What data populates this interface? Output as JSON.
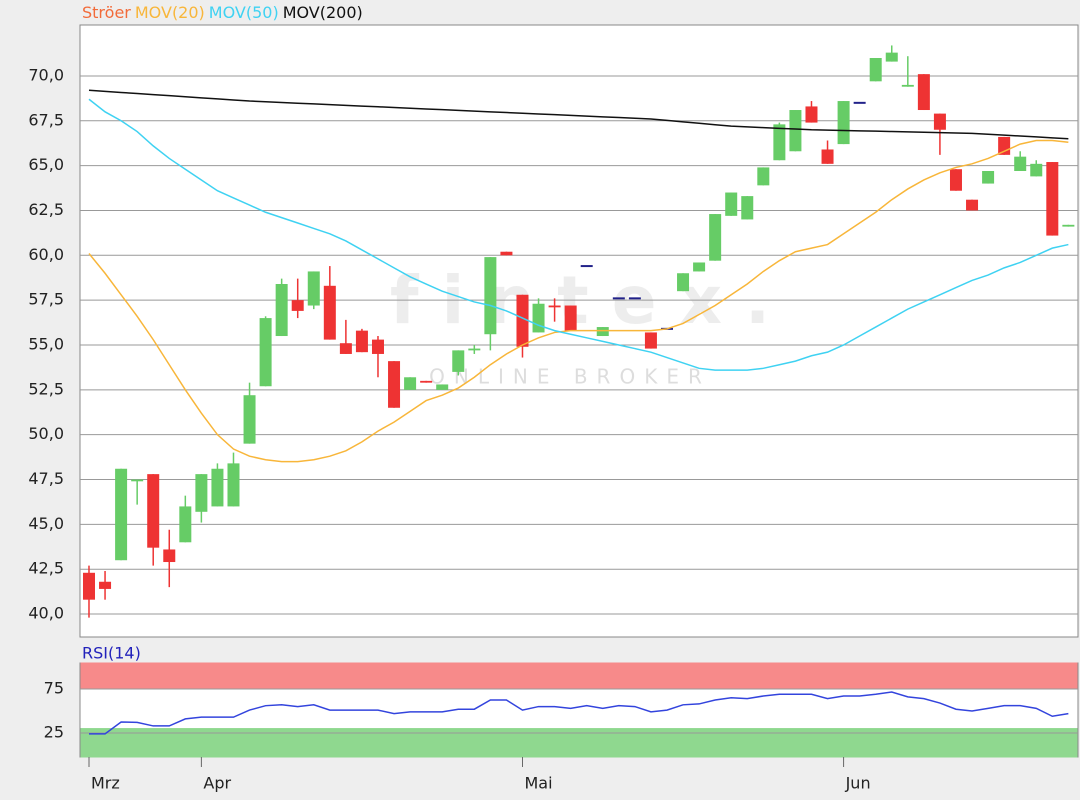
{
  "chart_data": [
    {
      "type": "candlestick",
      "name": "Ströer",
      "color": "#f26b3a",
      "up_color": "#66cc66",
      "down_color": "#ee3333",
      "flat_color": "#22228a",
      "open": [
        42.3,
        41.8,
        43.0,
        47.4,
        47.8,
        43.6,
        44.0,
        45.7,
        46.0,
        46.0,
        49.5,
        52.7,
        55.5,
        57.5,
        57.2,
        58.3,
        55.1,
        55.8,
        55.3,
        54.1,
        52.5,
        53.0,
        52.5,
        53.5,
        54.7,
        55.6,
        60.2,
        57.8,
        55.7,
        57.2,
        57.2,
        59.4,
        55.5,
        57.6,
        57.6,
        55.7,
        55.9,
        58.0,
        59.1,
        59.7,
        62.2,
        62.0,
        63.9,
        65.3,
        65.8,
        68.3,
        65.9,
        66.2,
        68.5,
        69.7,
        70.8,
        69.4,
        70.1,
        67.9,
        64.8,
        63.1,
        64.0,
        66.6,
        64.7,
        64.4,
        65.2,
        61.6
      ],
      "high": [
        42.7,
        42.4,
        48.1,
        47.5,
        47.8,
        44.7,
        46.6,
        47.8,
        48.4,
        49.0,
        52.9,
        56.6,
        58.7,
        58.7,
        59.1,
        59.4,
        56.4,
        55.9,
        55.5,
        54.1,
        53.2,
        53.0,
        52.8,
        54.7,
        55.0,
        59.9,
        60.2,
        57.8,
        57.6,
        57.6,
        57.2,
        59.4,
        56.0,
        57.6,
        57.6,
        55.7,
        55.9,
        59.0,
        59.6,
        62.3,
        63.5,
        63.3,
        64.9,
        67.4,
        68.1,
        68.6,
        66.4,
        68.6,
        68.5,
        71.0,
        71.7,
        71.1,
        70.1,
        67.9,
        64.8,
        63.1,
        64.7,
        66.6,
        65.8,
        65.3,
        65.2,
        61.7
      ],
      "low": [
        39.8,
        40.8,
        43.0,
        46.1,
        42.7,
        41.5,
        44.0,
        45.1,
        46.0,
        46.0,
        49.5,
        52.7,
        55.5,
        56.5,
        57.0,
        55.3,
        54.5,
        54.6,
        53.2,
        51.5,
        52.5,
        52.9,
        52.5,
        53.3,
        54.5,
        54.7,
        60.0,
        54.3,
        55.7,
        56.3,
        55.8,
        59.4,
        55.5,
        57.6,
        57.6,
        54.8,
        55.9,
        58.0,
        59.1,
        59.7,
        62.2,
        62.0,
        63.9,
        65.3,
        65.8,
        67.4,
        65.1,
        66.2,
        68.5,
        69.7,
        70.8,
        69.4,
        68.1,
        65.6,
        63.6,
        62.5,
        64.0,
        65.6,
        64.7,
        64.4,
        61.1,
        61.6
      ],
      "close": [
        40.8,
        41.4,
        48.1,
        47.5,
        43.7,
        42.9,
        46.0,
        47.8,
        48.1,
        48.4,
        52.2,
        56.5,
        58.4,
        56.9,
        59.1,
        55.3,
        54.5,
        54.6,
        54.5,
        51.5,
        53.2,
        52.9,
        52.8,
        54.7,
        54.8,
        59.9,
        60.0,
        54.9,
        57.3,
        57.1,
        55.8,
        59.4,
        56.0,
        57.6,
        57.6,
        54.8,
        55.9,
        59.0,
        59.6,
        62.3,
        63.5,
        63.3,
        64.9,
        67.3,
        68.1,
        67.4,
        65.1,
        68.6,
        68.5,
        71.0,
        71.3,
        69.5,
        68.1,
        67.0,
        63.6,
        62.5,
        64.7,
        65.6,
        65.5,
        65.1,
        61.1,
        61.7
      ],
      "series": [
        {
          "name": "MOV(20)",
          "color": "#f8b63a",
          "values": [
            60.1,
            59.0,
            57.8,
            56.6,
            55.3,
            53.9,
            52.5,
            51.2,
            50.0,
            49.2,
            48.8,
            48.6,
            48.5,
            48.5,
            48.6,
            48.8,
            49.1,
            49.6,
            50.2,
            50.7,
            51.3,
            51.9,
            52.2,
            52.6,
            53.2,
            53.9,
            54.5,
            55.0,
            55.4,
            55.7,
            55.8,
            55.8,
            55.8,
            55.8,
            55.8,
            55.8,
            55.9,
            56.2,
            56.7,
            57.2,
            57.8,
            58.4,
            59.1,
            59.7,
            60.2,
            60.4,
            60.6,
            61.2,
            61.8,
            62.4,
            63.1,
            63.7,
            64.2,
            64.6,
            64.9,
            65.1,
            65.4,
            65.8,
            66.2,
            66.4,
            66.4,
            66.3
          ]
        },
        {
          "name": "MOV(50)",
          "color": "#3fd2f2",
          "values": [
            68.7,
            68.0,
            67.5,
            66.9,
            66.1,
            65.4,
            64.8,
            64.2,
            63.6,
            63.2,
            62.8,
            62.4,
            62.1,
            61.8,
            61.5,
            61.2,
            60.8,
            60.3,
            59.8,
            59.3,
            58.8,
            58.4,
            58.0,
            57.7,
            57.4,
            57.2,
            56.9,
            56.5,
            56.1,
            55.8,
            55.6,
            55.4,
            55.2,
            55.0,
            54.8,
            54.6,
            54.3,
            54.0,
            53.7,
            53.6,
            53.6,
            53.6,
            53.7,
            53.9,
            54.1,
            54.4,
            54.6,
            55.0,
            55.5,
            56.0,
            56.5,
            57.0,
            57.4,
            57.8,
            58.2,
            58.6,
            58.9,
            59.3,
            59.6,
            60.0,
            60.4,
            60.6
          ]
        },
        {
          "name": "MOV(200)",
          "color": "#111111",
          "values": [
            69.2,
            69.14,
            69.08,
            69.02,
            68.96,
            68.9,
            68.84,
            68.78,
            68.72,
            68.66,
            68.6,
            68.56,
            68.52,
            68.48,
            68.44,
            68.4,
            68.36,
            68.32,
            68.28,
            68.24,
            68.2,
            68.16,
            68.12,
            68.08,
            68.04,
            68.0,
            67.96,
            67.92,
            67.88,
            67.84,
            67.8,
            67.76,
            67.72,
            67.68,
            67.64,
            67.6,
            67.52,
            67.44,
            67.36,
            67.28,
            67.2,
            67.16,
            67.12,
            67.08,
            67.04,
            67.0,
            66.98,
            66.96,
            66.94,
            66.92,
            66.9,
            66.88,
            66.86,
            66.84,
            66.82,
            66.8,
            66.75,
            66.7,
            66.65,
            66.6,
            66.55,
            66.5
          ]
        }
      ],
      "xlim": [
        -0.56,
        61.6
      ],
      "ylim": [
        38.72,
        72.84
      ],
      "yticks": [
        {
          "value": 40,
          "label": "40,0"
        },
        {
          "value": 42.5,
          "label": "42,5"
        },
        {
          "value": 45,
          "label": "45,0"
        },
        {
          "value": 47.5,
          "label": "47,5"
        },
        {
          "value": 50,
          "label": "50,0"
        },
        {
          "value": 52.5,
          "label": "52,5"
        },
        {
          "value": 55,
          "label": "55,0"
        },
        {
          "value": 57.5,
          "label": "57,5"
        },
        {
          "value": 60,
          "label": "60,0"
        },
        {
          "value": 62.5,
          "label": "62,5"
        },
        {
          "value": 65,
          "label": "65,0"
        },
        {
          "value": 67.5,
          "label": "67,5"
        },
        {
          "value": 70,
          "label": "70,0"
        }
      ],
      "grid": true,
      "watermark": "ONLINE BROKER"
    },
    {
      "type": "line",
      "title": "RSI(14)",
      "title_color": "#2222bb",
      "color": "#3344dd",
      "values": [
        24,
        24,
        37.5,
        37,
        33,
        33,
        41,
        43,
        43,
        43,
        51,
        56,
        57,
        55,
        57,
        51,
        51,
        51,
        51,
        47,
        49,
        49,
        49,
        52,
        52,
        62.5,
        62.5,
        51,
        55,
        55,
        53,
        56,
        53,
        56,
        55,
        49,
        51,
        57,
        58,
        62.5,
        65,
        64,
        67,
        69,
        69,
        69,
        64,
        67,
        67,
        69,
        71.5,
        66,
        64,
        59,
        52,
        50,
        53,
        56,
        56,
        53,
        44,
        47
      ],
      "xlim": [
        -0.56,
        61.6
      ],
      "ylim": [
        -2.3,
        104.5
      ],
      "yticks": [
        25,
        75
      ],
      "grid": true,
      "zones": [
        {
          "from": 75,
          "to": 104.5,
          "color": "#f78a8a"
        },
        {
          "from": -2.3,
          "to": 30,
          "color": "#8fd88f"
        }
      ],
      "xticks": [
        {
          "value": 0,
          "label": "Mrz"
        },
        {
          "value": 7,
          "label": "Apr"
        },
        {
          "value": 27,
          "label": "Mai"
        },
        {
          "value": 47,
          "label": "Jun"
        }
      ]
    }
  ]
}
